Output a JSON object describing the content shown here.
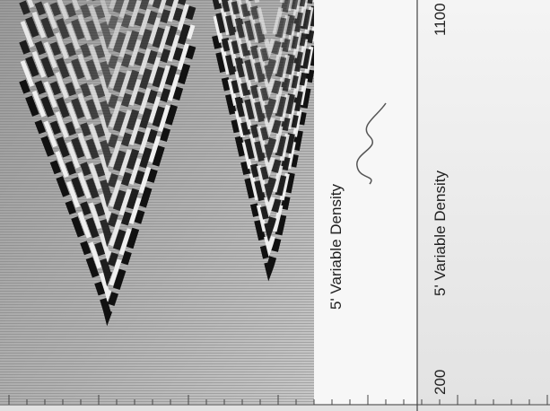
{
  "panel": {
    "label": "5' Variable Density"
  },
  "scale": {
    "label": "5' Variable Density",
    "top_value": 1100,
    "bottom_value": 200
  }
}
